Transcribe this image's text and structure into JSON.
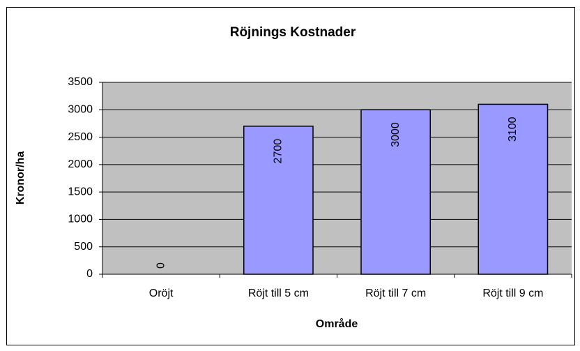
{
  "chart_data": {
    "type": "bar",
    "title": "Röjnings Kostnader",
    "x_label": "Område",
    "y_label": "Kronor/ha",
    "categories": [
      "Oröjt",
      "Röjt till 5 cm",
      "Röjt till 7 cm",
      "Röjt till 9 cm"
    ],
    "values": [
      0,
      2700,
      3000,
      3100
    ],
    "color": "#9999ff",
    "ylim": [
      0,
      3500
    ],
    "yticks": [
      0,
      500,
      1000,
      1500,
      2000,
      2500,
      3000,
      3500
    ],
    "grid": true
  }
}
